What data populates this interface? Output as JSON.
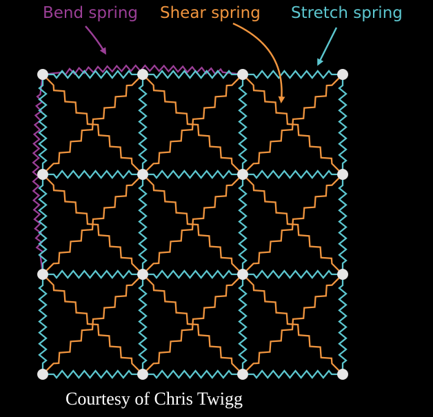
{
  "labels": {
    "bend": "Bend spring",
    "shear": "Shear spring",
    "stretch": "Stretch spring"
  },
  "credit": "Courtesy of Chris Twigg",
  "colors": {
    "background": "#000000",
    "bend": "#9b3f97",
    "shear": "#f0953f",
    "stretch": "#5cc6cf",
    "node": "#e6e6e6",
    "credit": "#ffffff"
  },
  "grid": {
    "rows": 4,
    "cols": 4
  },
  "spring_types": [
    "stretch",
    "shear",
    "bend"
  ]
}
